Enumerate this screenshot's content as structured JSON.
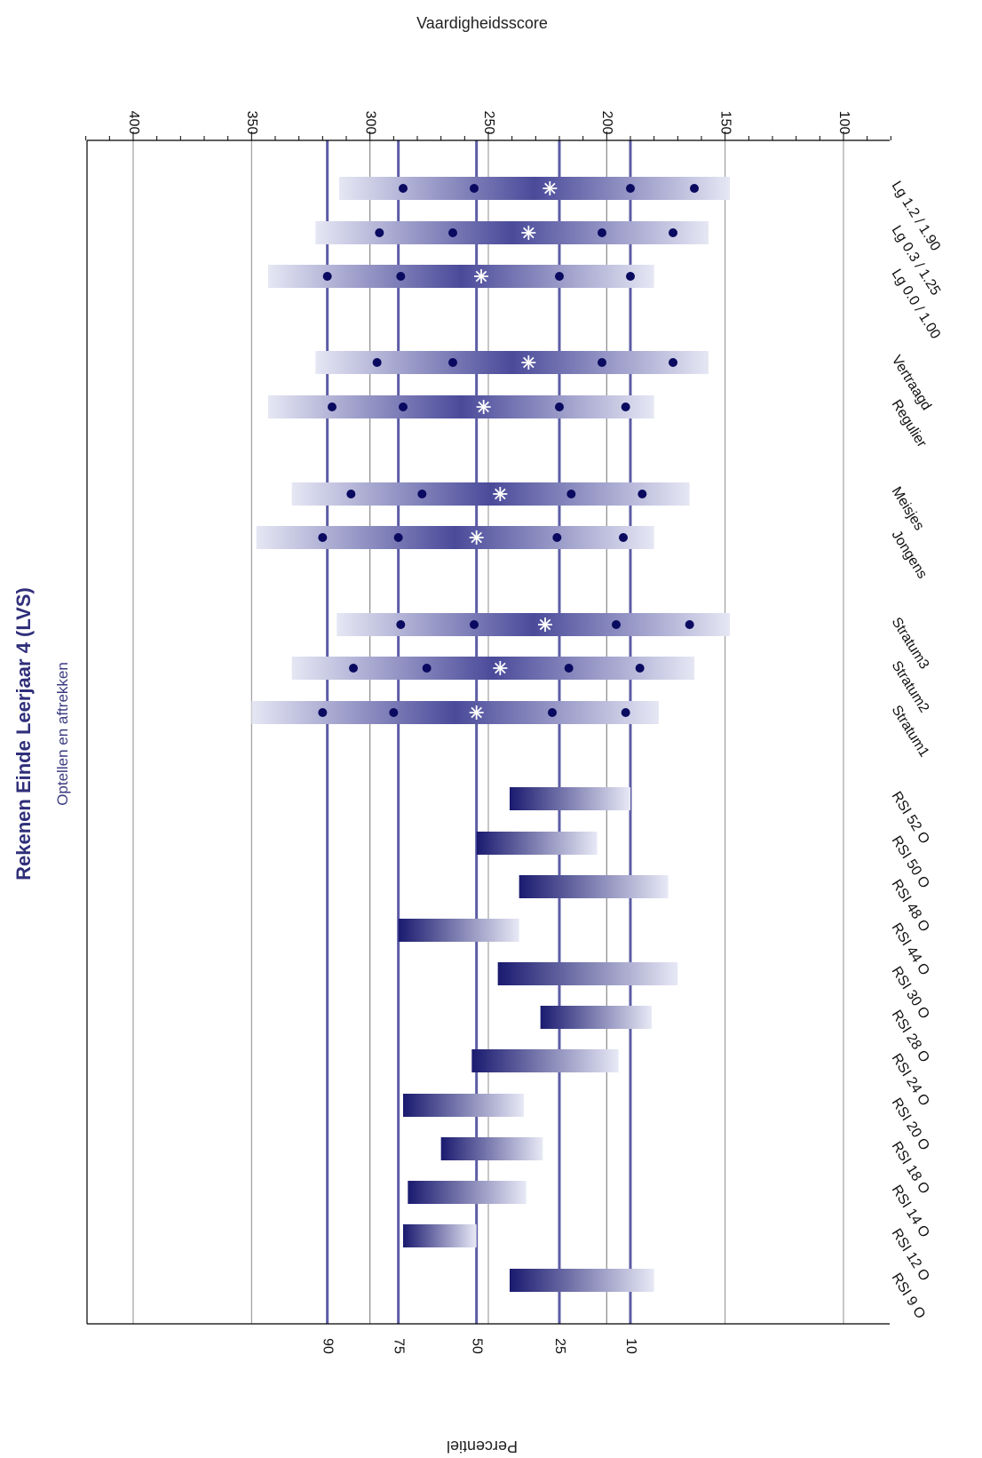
{
  "chart_data": {
    "type": "bar",
    "orientation": "rotated-90",
    "title": "Rekenen Einde Leerjaar 4 (LVS)",
    "subtitle": "Optellen en aftrekken",
    "score_axis_label": "Vaardigheidsscore",
    "percentile_axis_label": "Percentiel",
    "score_ticks": [
      400,
      350,
      300,
      250,
      200,
      150,
      100
    ],
    "score_range": [
      80,
      420
    ],
    "percentile_lines": [
      {
        "label": "90",
        "score": 318
      },
      {
        "label": "75",
        "score": 288
      },
      {
        "label": "50",
        "score": 255
      },
      {
        "label": "25",
        "score": 220
      },
      {
        "label": "10",
        "score": 190
      }
    ],
    "extra_gridlines": [
      300,
      200
    ],
    "categories": [
      "RSI 9 O",
      "RSI 12 O",
      "RSI 14 O",
      "RSI 18 O",
      "RSI 20 O",
      "RSI 24 O",
      "RSI 28 O",
      "RSI 30 O",
      "RSI 44 O",
      "RSI 48 O",
      "RSI 50 O",
      "RSI 52 O",
      "Stratum1",
      "Stratum2",
      "Stratum3",
      "Jongens",
      "Meisjes",
      "Regulier",
      "Vertraagd",
      "Lg 0.0 / 1.00",
      "Lg 0.3 / 1.25",
      "Lg 1.2 / 1.90"
    ],
    "rsi_bars": [
      {
        "category": "RSI 9 O",
        "from": 241,
        "to": 180
      },
      {
        "category": "RSI 12 O",
        "from": 286,
        "to": 255
      },
      {
        "category": "RSI 14 O",
        "from": 284,
        "to": 234
      },
      {
        "category": "RSI 18 O",
        "from": 270,
        "to": 227
      },
      {
        "category": "RSI 20 O",
        "from": 286,
        "to": 235
      },
      {
        "category": "RSI 24 O",
        "from": 257,
        "to": 195
      },
      {
        "category": "RSI 28 O",
        "from": 228,
        "to": 181
      },
      {
        "category": "RSI 30 O",
        "from": 246,
        "to": 170
      },
      {
        "category": "RSI 44 O",
        "from": 288,
        "to": 237
      },
      {
        "category": "RSI 48 O",
        "from": 237,
        "to": 174
      },
      {
        "category": "RSI 50 O",
        "from": 255,
        "to": 204
      },
      {
        "category": "RSI 52 O",
        "from": 241,
        "to": 190
      }
    ],
    "group_series": [
      {
        "category": "Stratum1",
        "p90": 320,
        "p75": 290,
        "p50": 255,
        "p25": 223,
        "p10": 192,
        "range": [
          350,
          178
        ]
      },
      {
        "category": "Stratum2",
        "p90": 307,
        "p75": 276,
        "p50": 245,
        "p25": 216,
        "p10": 186,
        "range": [
          333,
          163
        ]
      },
      {
        "category": "Stratum3",
        "p90": 287,
        "p75": 256,
        "p50": 226,
        "p25": 196,
        "p10": 165,
        "range": [
          314,
          148
        ]
      },
      {
        "category": "Jongens",
        "p90": 320,
        "p75": 288,
        "p50": 255,
        "p25": 221,
        "p10": 193,
        "range": [
          348,
          180
        ]
      },
      {
        "category": "Meisjes",
        "p90": 308,
        "p75": 278,
        "p50": 245,
        "p25": 215,
        "p10": 185,
        "range": [
          333,
          165
        ]
      },
      {
        "category": "Regulier",
        "p90": 316,
        "p75": 286,
        "p50": 252,
        "p25": 220,
        "p10": 192,
        "range": [
          343,
          180
        ]
      },
      {
        "category": "Vertraagd",
        "p90": 297,
        "p75": 265,
        "p50": 233,
        "p25": 202,
        "p10": 172,
        "range": [
          323,
          157
        ]
      },
      {
        "category": "Lg 0.0 / 1.00",
        "p90": 318,
        "p75": 287,
        "p50": 253,
        "p25": 220,
        "p10": 190,
        "range": [
          343,
          180
        ]
      },
      {
        "category": "Lg 0.3 / 1.25",
        "p90": 296,
        "p75": 265,
        "p50": 233,
        "p25": 202,
        "p10": 172,
        "range": [
          323,
          157
        ]
      },
      {
        "category": "Lg 1.2 / 1.90",
        "p90": 286,
        "p75": 256,
        "p50": 224,
        "p25": 190,
        "p10": 163,
        "range": [
          313,
          148
        ]
      }
    ],
    "grid": true,
    "colors": {
      "bar_dark": "#1a1a70",
      "bar_light": "#e8e9f6",
      "percentile_line": "#5c5ca6",
      "grid": "#8c8c8c",
      "marker": "#0a0a60",
      "title": "#2f2f7a"
    }
  }
}
